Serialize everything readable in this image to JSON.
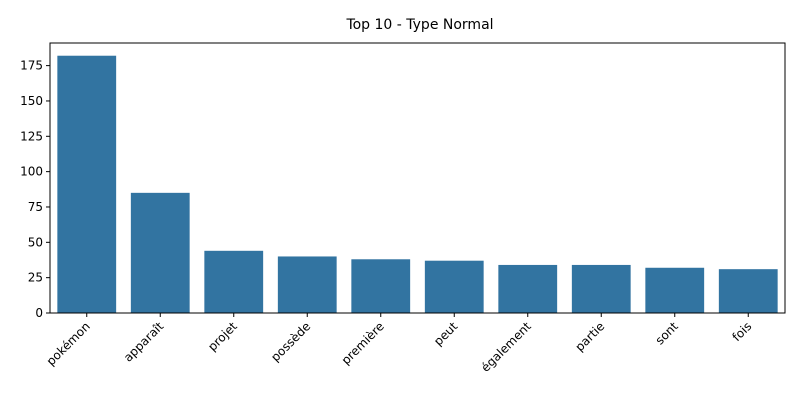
{
  "chart_data": {
    "type": "bar",
    "title": "Top 10 - Type Normal",
    "xlabel": "",
    "ylabel": "",
    "categories": [
      "pokémon",
      "apparaît",
      "projet",
      "possède",
      "première",
      "peut",
      "également",
      "partie",
      "sont",
      "fois"
    ],
    "values": [
      182,
      85,
      44,
      40,
      38,
      37,
      34,
      34,
      32,
      31
    ],
    "ylim": [
      0,
      191
    ],
    "yticks": [
      0,
      25,
      50,
      75,
      100,
      125,
      150,
      175
    ],
    "grid": false,
    "bar_color": "#3274a1"
  }
}
